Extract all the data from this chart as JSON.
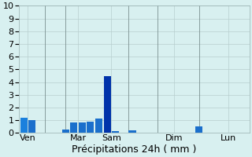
{
  "xlabel": "Précipitations 24h ( mm )",
  "background_color": "#d8f0f0",
  "ylim": [
    0,
    10
  ],
  "yticks": [
    0,
    1,
    2,
    3,
    4,
    5,
    6,
    7,
    8,
    9,
    10
  ],
  "grid_color": "#b8cece",
  "bar_positions": [
    0,
    1,
    5,
    6,
    7,
    8,
    9,
    10,
    11,
    13,
    17,
    21,
    22,
    23,
    24,
    25
  ],
  "bar_heights": [
    1.2,
    1.0,
    0.25,
    0.8,
    0.85,
    0.9,
    1.15,
    4.5,
    0.15,
    0.2,
    0.0,
    0.5,
    0.0,
    0.0,
    0.0,
    0.0
  ],
  "bar_colors": [
    "#1a80dd",
    "#1a6fcc",
    "#1a6fcc",
    "#1a6fcc",
    "#1a6fcc",
    "#1a6fcc",
    "#1a6fcc",
    "#0033aa",
    "#1a6fcc",
    "#1a6fcc",
    "#1a6fcc",
    "#1a6fcc",
    "#1a6fcc",
    "#1a6fcc",
    "#1a6fcc",
    "#1a6fcc"
  ],
  "day_tick_labels": [
    "Ven",
    "Mar",
    "Sam",
    "Dim",
    "Lun"
  ],
  "day_tick_positions": [
    0.5,
    6.5,
    10.5,
    18.0,
    24.5
  ],
  "vline_positions": [
    2.5,
    5.0,
    12.5,
    16.0,
    21.0
  ],
  "xlim": [
    -0.6,
    27.0
  ],
  "xlabel_fontsize": 9,
  "tick_fontsize": 8,
  "bar_width": 0.85
}
